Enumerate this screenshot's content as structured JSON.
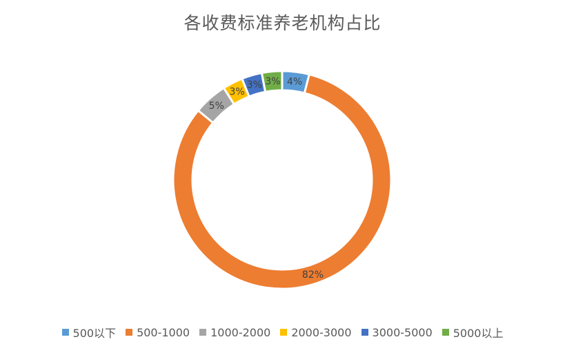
{
  "chart_data": {
    "type": "pie",
    "title": "各收费标准养老机构占比",
    "categories": [
      "500以下",
      "500-1000",
      "1000-2000",
      "2000-3000",
      "3000-5000",
      "5000以上"
    ],
    "values": [
      4,
      82,
      5,
      3,
      3,
      3
    ],
    "labels": [
      "4%",
      "82%",
      "5%",
      "3%",
      "3%",
      "3%"
    ],
    "colors": [
      "#5B9BD5",
      "#ED7D31",
      "#A5A5A5",
      "#FFC000",
      "#4472C4",
      "#70AD47"
    ],
    "legend_position": "bottom"
  }
}
